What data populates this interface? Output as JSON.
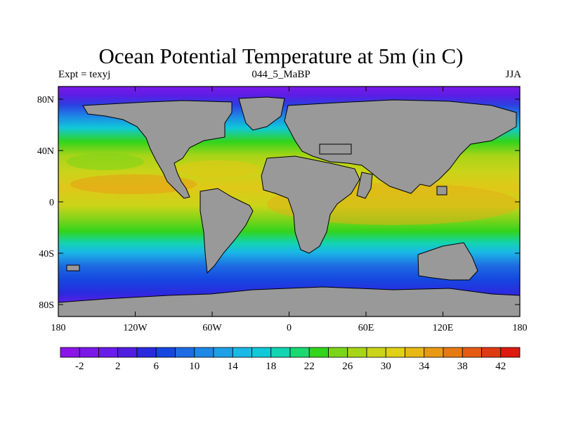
{
  "title": "Ocean Potential Temperature at 5m (in C)",
  "subtitle_left": "Expt = texyj",
  "subtitle_center": "044_5_MaBP",
  "subtitle_right": "JJA",
  "lat_ticks": [
    "80N",
    "40N",
    "0",
    "40S",
    "80S"
  ],
  "lon_ticks": [
    "180",
    "120W",
    "60W",
    "0",
    "60E",
    "120E",
    "180"
  ],
  "colorbar": {
    "colors": [
      "#8a15e6",
      "#7a18e8",
      "#6a1ce8",
      "#4f1ee0",
      "#2b2adf",
      "#1547e0",
      "#1e6be3",
      "#1d88e6",
      "#1ea0e6",
      "#1ab8e6",
      "#10c8d8",
      "#12d4b0",
      "#18d872",
      "#32d41c",
      "#7cd41a",
      "#a8d418",
      "#cad418",
      "#e0d018",
      "#e8b814",
      "#e89a14",
      "#e67a12",
      "#e45a12",
      "#e03a12",
      "#dc1a10"
    ],
    "labels": [
      "-2",
      "2",
      "6",
      "10",
      "14",
      "18",
      "22",
      "26",
      "30",
      "34",
      "38",
      "42"
    ]
  },
  "colors": {
    "land": "#999999",
    "frame": "#000000"
  }
}
